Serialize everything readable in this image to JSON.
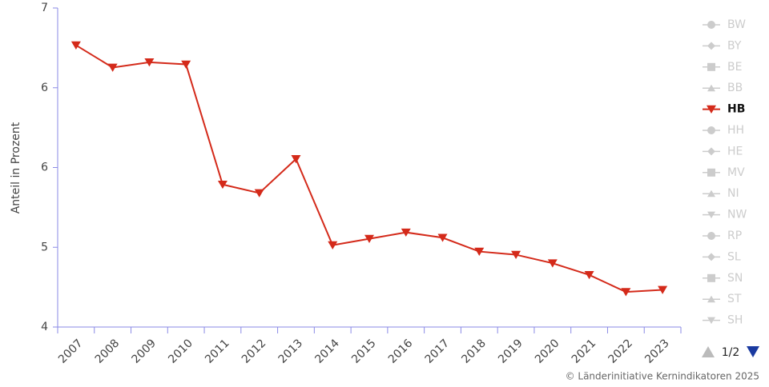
{
  "chart_data": {
    "type": "line",
    "y_label": "Anteil in Prozent",
    "categories": [
      "2007",
      "2008",
      "2009",
      "2010",
      "2011",
      "2012",
      "2013",
      "2014",
      "2015",
      "2016",
      "2017",
      "2018",
      "2019",
      "2020",
      "2021",
      "2022",
      "2023"
    ],
    "series": [
      {
        "name": "HB",
        "color": "#d42a1a",
        "values": [
          6.65,
          6.44,
          6.49,
          6.47,
          5.34,
          5.26,
          5.58,
          4.77,
          4.83,
          4.89,
          4.84,
          4.71,
          4.68,
          4.6,
          4.49,
          4.33,
          4.35
        ]
      }
    ],
    "ylim": [
      4,
      7
    ],
    "yticks": [
      4,
      {
        "value": 4.75,
        "label": "5"
      },
      {
        "value": 5.5,
        "label": "6"
      },
      {
        "value": 6.25,
        "label": "6"
      },
      7
    ],
    "legend": {
      "items": [
        "BW",
        "BY",
        "BE",
        "BB",
        "HB",
        "HH",
        "HE",
        "MV",
        "NI",
        "NW",
        "RP",
        "SL",
        "SN",
        "ST",
        "SH"
      ],
      "active": "HB",
      "page": "1/2"
    },
    "credit": "© Länderinitiative Kernindikatoren 2025"
  }
}
